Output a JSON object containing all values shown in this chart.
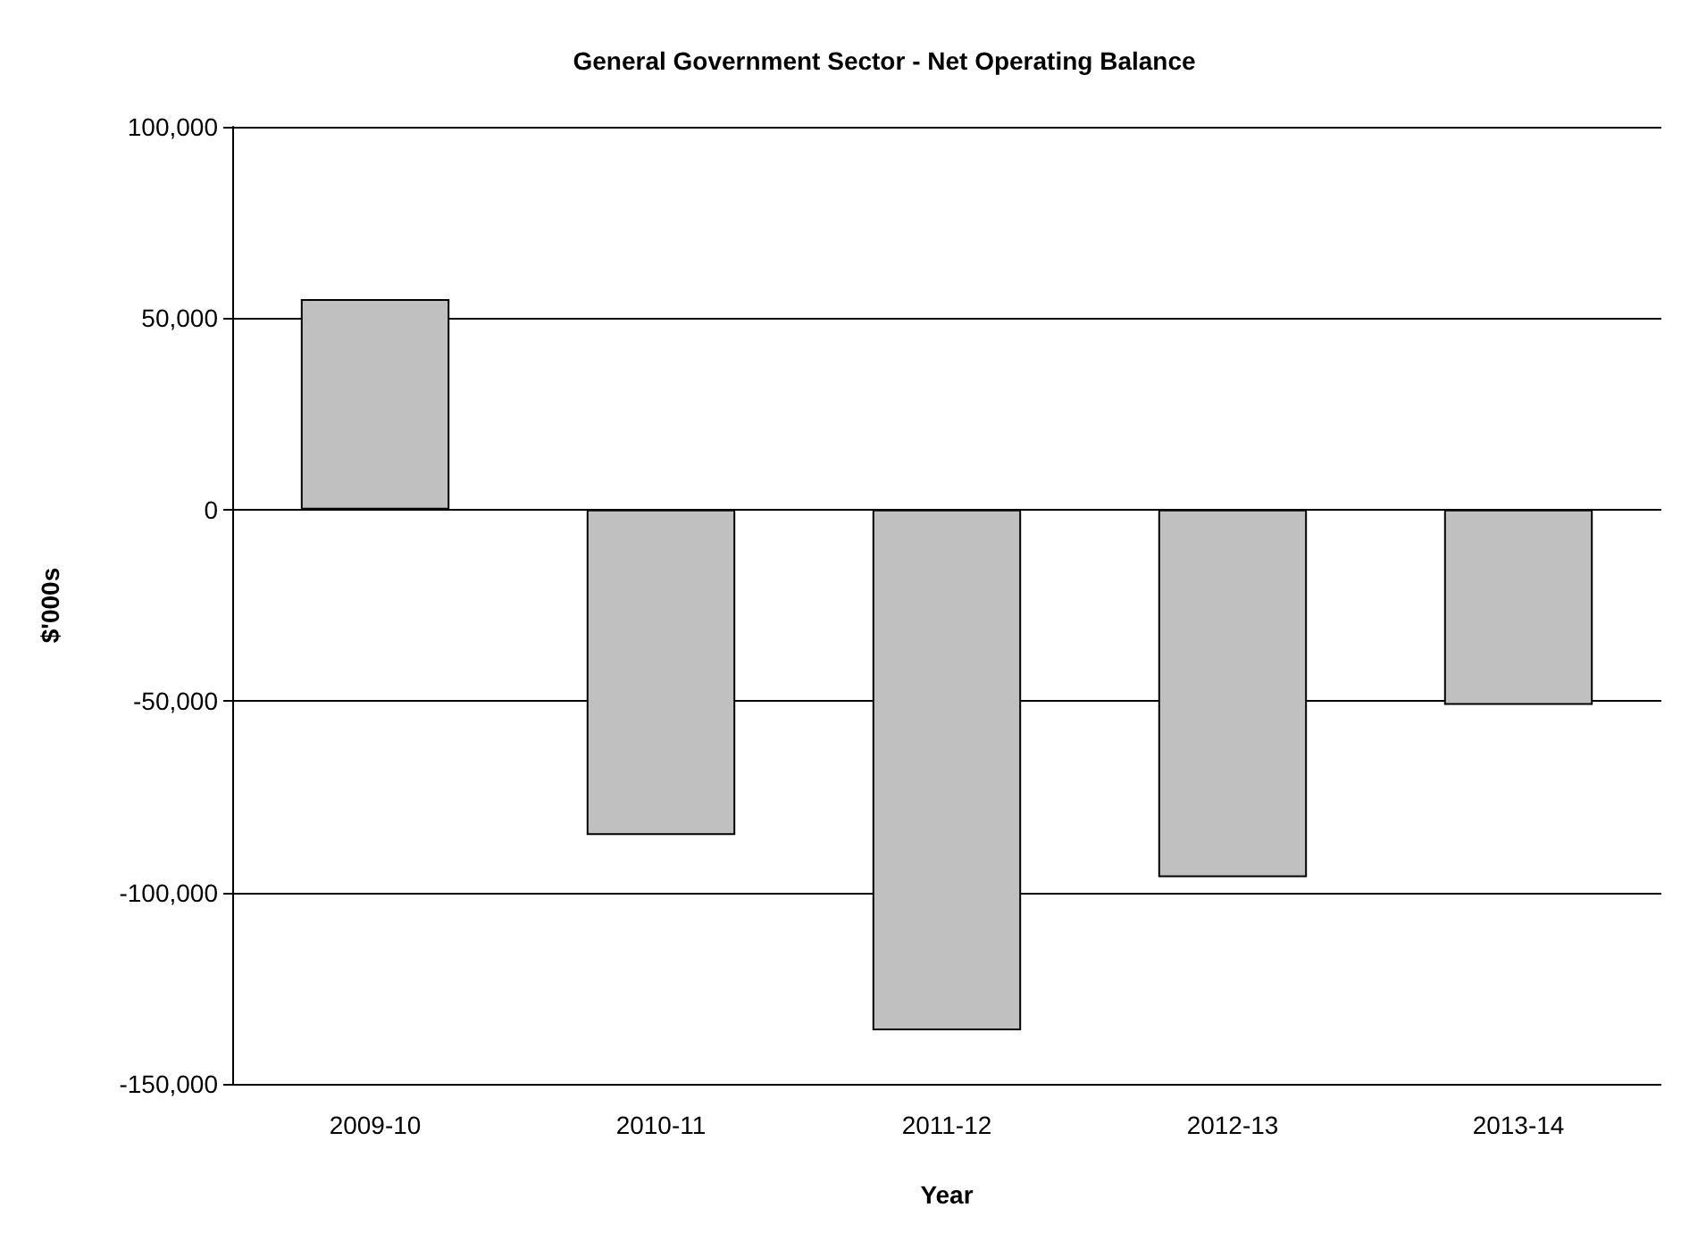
{
  "chart_data": {
    "type": "bar",
    "title": "General Government Sector - Net Operating Balance",
    "xlabel": "Year",
    "ylabel": "$'000s",
    "categories": [
      "2009-10",
      "2010-11",
      "2011-12",
      "2012-13",
      "2013-14"
    ],
    "values": [
      55000,
      -85000,
      -136000,
      -96000,
      -51000
    ],
    "color": "#c0c0c0",
    "ylim": [
      -150000,
      100000
    ],
    "yticks": [
      {
        "value": -150000,
        "label": "-150,000"
      },
      {
        "value": -100000,
        "label": "-100,000"
      },
      {
        "value": -50000,
        "label": "-50,000"
      },
      0,
      {
        "value": 50000,
        "label": "50,000"
      },
      {
        "value": 100000,
        "label": "100,000"
      }
    ],
    "grid": "y"
  }
}
